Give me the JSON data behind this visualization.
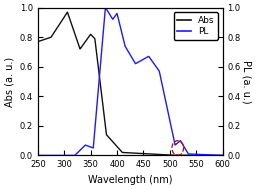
{
  "xlim": [
    250,
    600
  ],
  "ylim_abs": [
    0.0,
    1.0
  ],
  "ylim_pl": [
    0.0,
    1.0
  ],
  "xlabel": "Wavelength (nm)",
  "ylabel_left": "Abs (a. u.)",
  "ylabel_right": "PL (a. u.)",
  "abs_color": "#111111",
  "pl_color": "#1a1aff",
  "circle_color": "#cc0000",
  "background_color": "#ffffff",
  "legend_labels": [
    "Abs",
    "PL"
  ],
  "yticks": [
    0.0,
    0.2,
    0.4,
    0.6,
    0.8,
    1.0
  ],
  "xticks": [
    250,
    300,
    350,
    400,
    450,
    500,
    550,
    600
  ],
  "figsize": [
    2.56,
    1.89
  ],
  "dpi": 100
}
